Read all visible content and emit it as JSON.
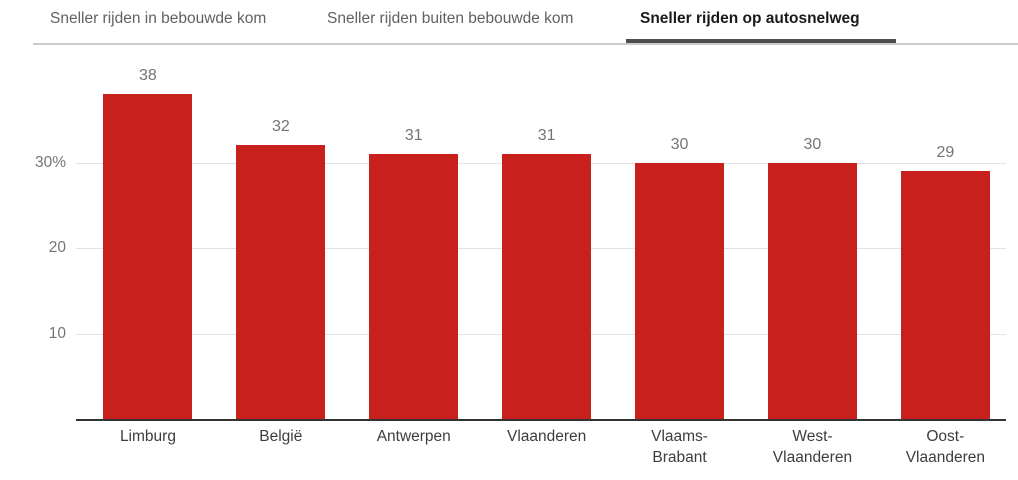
{
  "tabs": [
    {
      "label": "Sneller rijden in bebouwde kom",
      "active": false
    },
    {
      "label": "Sneller rijden buiten bebouwde kom",
      "active": false
    },
    {
      "label": "Sneller rijden op autosnelweg",
      "active": true
    }
  ],
  "chart_data": {
    "type": "bar",
    "categories": [
      "Limburg",
      "België",
      "Antwerpen",
      "Vlaanderen",
      "Vlaams-\nBrabant",
      "West-\nVlaanderen",
      "Oost-\nVlaanderen"
    ],
    "values": [
      38,
      32,
      31,
      31,
      30,
      30,
      29
    ],
    "value_labels": [
      "38",
      "32",
      "31",
      "31",
      "30",
      "30",
      "29"
    ],
    "title": "",
    "xlabel": "",
    "ylabel": "",
    "ylim": [
      0,
      40
    ],
    "yticks": [
      10,
      20,
      30
    ],
    "ytick_labels": [
      "10",
      "20",
      "30%"
    ],
    "legend": null,
    "grid": true,
    "bar_color": "#c8201c",
    "gridline_color": "#e3e3e3",
    "axis_color": "#333333",
    "value_label_color": "#757575",
    "ytick_color": "#757575",
    "xtick_color": "#3d3d3d"
  },
  "colors": {
    "active_tab_text": "#1a1a1a",
    "inactive_tab_text": "#616161",
    "active_tab_indicator": "#4d4d4d",
    "tab_divider": "#cccccc",
    "background": "#ffffff"
  }
}
